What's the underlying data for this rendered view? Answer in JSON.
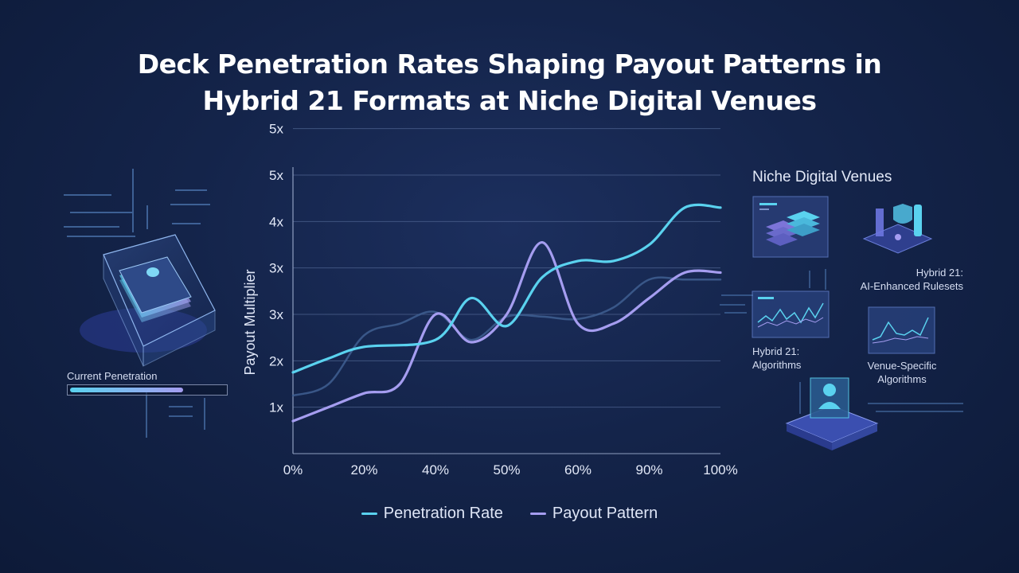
{
  "title": {
    "line1": "Deck Penetration Rates Shaping Payout Patterns in",
    "line2": "Hybrid 21 Formats at Niche Digital Venues"
  },
  "colors": {
    "penetration": "#5ad2ef",
    "payout": "#a59df0",
    "background": "#14244a"
  },
  "chart_data": {
    "type": "line",
    "xlabel": "",
    "ylabel": "Payout Multiplier",
    "x_ticks": [
      "0%",
      "20%",
      "40%",
      "50%",
      "60%",
      "90%",
      "100%"
    ],
    "y_ticks": [
      "1x",
      "2x",
      "3x",
      "3x",
      "4x",
      "5x",
      "5x"
    ],
    "grid": true,
    "legend_position": "bottom-center",
    "series": [
      {
        "name": "Penetration Rate",
        "color": "#5ad2ef",
        "x": [
          0,
          0.5,
          1,
          2,
          2.5,
          3,
          3.5,
          4,
          4.5,
          5,
          5.5,
          6
        ],
        "y": [
          1.75,
          2.05,
          2.3,
          2.45,
          3.35,
          2.75,
          3.8,
          4.15,
          4.15,
          4.5,
          5.3,
          5.3
        ]
      },
      {
        "name": "Payout Pattern",
        "color": "#a59df0",
        "x": [
          0,
          0.5,
          1,
          1.5,
          2,
          2.5,
          3,
          3.5,
          4,
          4.5,
          5,
          5.5,
          6
        ],
        "y": [
          0.7,
          1.0,
          1.3,
          1.5,
          3.0,
          2.4,
          3.0,
          4.55,
          2.8,
          2.8,
          3.35,
          3.9,
          3.9
        ]
      },
      {
        "name": "",
        "color": "#3f5f92",
        "x": [
          0,
          0.5,
          1,
          1.5,
          2,
          2.5,
          3,
          3.5,
          4,
          4.5,
          5,
          5.5,
          6
        ],
        "y": [
          1.25,
          1.5,
          2.55,
          2.8,
          3.05,
          2.45,
          2.95,
          2.95,
          2.9,
          3.15,
          3.75,
          3.75,
          3.75
        ]
      }
    ],
    "ylim": [
      0,
      6
    ],
    "xlim": [
      0,
      6
    ]
  },
  "legend": {
    "items": [
      {
        "label": "Penetration Rate"
      },
      {
        "label": "Payout Pattern"
      }
    ]
  },
  "left_panel": {
    "penetration_label": "Current Penetration",
    "penetration_fraction": 0.73
  },
  "right_panel": {
    "title": "Niche Digital Venues",
    "tiles": [
      {
        "icon": "server-stack-icon",
        "label_line1": "",
        "label_line2": ""
      },
      {
        "icon": "shield-cloud-icon",
        "label_line1": "Hybrid 21:",
        "label_line2": "AI-Enhanced Rulesets"
      },
      {
        "icon": "line-chart-icon",
        "label_line1": "Hybrid 21:",
        "label_line2": "Algorithms"
      },
      {
        "icon": "trend-chart-icon",
        "label_line1": "Venue-Specific",
        "label_line2": "Algorithms"
      },
      {
        "icon": "user-profile-icon",
        "label_line1": "",
        "label_line2": ""
      }
    ]
  }
}
